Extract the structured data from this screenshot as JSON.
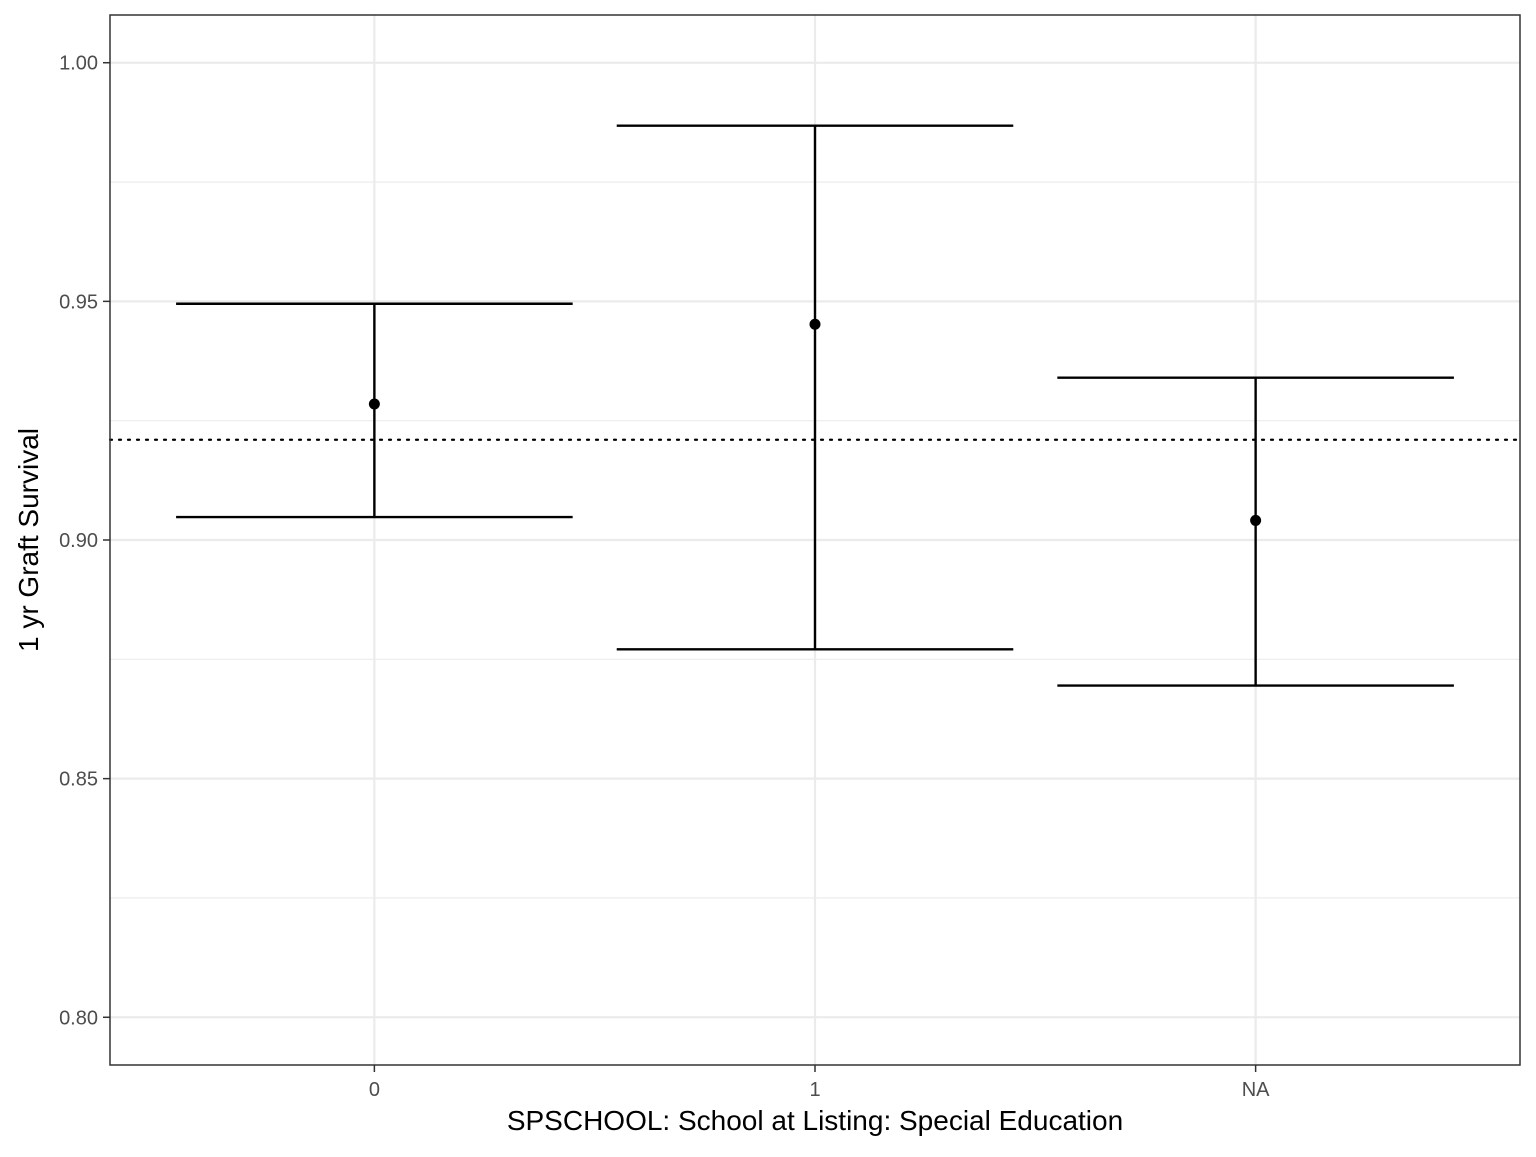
{
  "chart_data": {
    "type": "errorbar",
    "title": "",
    "xlabel": "SPSCHOOL: School at Listing: Special Education",
    "ylabel": "1 yr Graft Survival",
    "categories": [
      "0",
      "1",
      "NA"
    ],
    "points": [
      {
        "category": "0",
        "estimate": 0.9285,
        "lower": 0.9048,
        "upper": 0.9495
      },
      {
        "category": "1",
        "estimate": 0.9452,
        "lower": 0.8771,
        "upper": 0.9868
      },
      {
        "category": "NA",
        "estimate": 0.9041,
        "lower": 0.8695,
        "upper": 0.934
      }
    ],
    "reference_line": {
      "y": 0.921,
      "style": "dotted"
    },
    "ylim": [
      0.79,
      1.01
    ],
    "yticks": [
      0.8,
      0.85,
      0.9,
      0.95,
      1.0
    ],
    "ytick_labels": [
      "0.80",
      "0.85",
      "0.90",
      "0.95",
      "1.00"
    ],
    "grid": true,
    "legend": "none",
    "colors": {
      "mark": "#000000",
      "grid": "#ebebeb",
      "panel_border": "#333333",
      "tick_label": "#4d4d4d"
    }
  }
}
